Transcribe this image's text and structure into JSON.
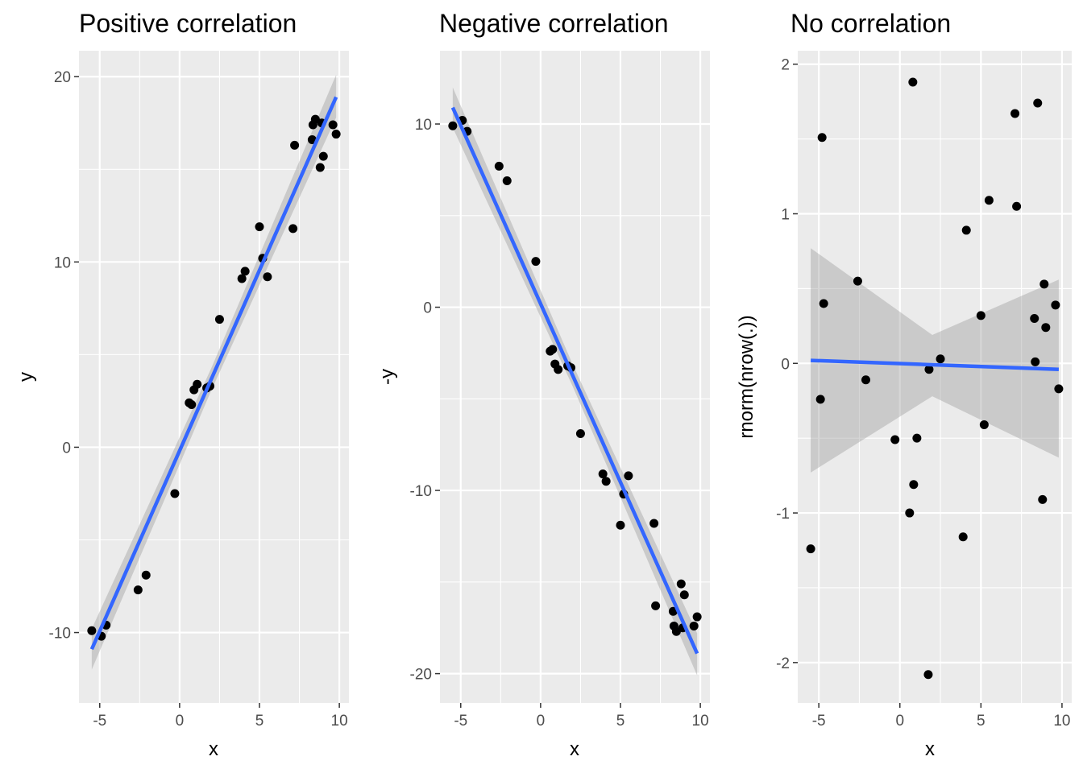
{
  "chart_data": [
    {
      "type": "scatter",
      "title": "Positive correlation",
      "xlabel": "x",
      "ylabel": "y",
      "xlim": [
        -6.3,
        10.6
      ],
      "ylim": [
        -13.8,
        21.4
      ],
      "xticks": [
        -5,
        0,
        5,
        10
      ],
      "yticks": [
        -10,
        0,
        10,
        20
      ],
      "xtick_labels": [
        "-5",
        "0",
        "5",
        "10"
      ],
      "ytick_labels": [
        "-10",
        "0",
        "10",
        "20"
      ],
      "grid": true,
      "points": {
        "x": [
          -5.5,
          -4.9,
          -4.6,
          -2.6,
          -2.1,
          -0.3,
          0.6,
          0.75,
          0.9,
          1.1,
          1.7,
          1.9,
          2.5,
          3.9,
          4.1,
          5.0,
          5.2,
          5.5,
          7.1,
          7.2,
          8.3,
          8.35,
          8.5,
          8.8,
          8.9,
          9.0,
          9.6,
          9.8
        ],
        "y": [
          -9.9,
          -10.2,
          -9.6,
          -7.7,
          -6.9,
          -2.5,
          2.4,
          2.3,
          3.1,
          3.4,
          3.2,
          3.3,
          6.9,
          9.1,
          9.5,
          11.9,
          10.2,
          9.2,
          11.8,
          16.3,
          16.6,
          17.4,
          17.7,
          15.1,
          17.5,
          15.7,
          17.4,
          16.9
        ]
      },
      "fit": {
        "x": [
          -5.5,
          9.8
        ],
        "y": [
          -10.9,
          18.9
        ]
      },
      "ci": {
        "x": [
          -5.5,
          2.0,
          9.8
        ],
        "upper": [
          -9.8,
          4.3,
          20.1
        ],
        "lower": [
          -12.0,
          3.1,
          17.8
        ]
      }
    },
    {
      "type": "scatter",
      "title": "Negative correlation",
      "xlabel": "x",
      "ylabel": "-y",
      "xlim": [
        -6.3,
        10.6
      ],
      "ylim": [
        -21.6,
        14.0
      ],
      "xticks": [
        -5,
        0,
        5,
        10
      ],
      "yticks": [
        -20,
        -10,
        0,
        10
      ],
      "xtick_labels": [
        "-5",
        "0",
        "5",
        "10"
      ],
      "ytick_labels": [
        "-20",
        "-10",
        "0",
        "10"
      ],
      "grid": true,
      "points": {
        "x": [
          -5.5,
          -4.9,
          -4.6,
          -2.6,
          -2.1,
          -0.3,
          0.6,
          0.75,
          0.9,
          1.1,
          1.7,
          1.9,
          2.5,
          3.9,
          4.1,
          5.0,
          5.2,
          5.5,
          7.1,
          7.2,
          8.3,
          8.35,
          8.5,
          8.8,
          8.9,
          9.0,
          9.6,
          9.8
        ],
        "y": [
          9.9,
          10.2,
          9.6,
          7.7,
          6.9,
          2.5,
          -2.4,
          -2.3,
          -3.1,
          -3.4,
          -3.2,
          -3.3,
          -6.9,
          -9.1,
          -9.5,
          -11.9,
          -10.2,
          -9.2,
          -11.8,
          -16.3,
          -16.6,
          -17.4,
          -17.7,
          -15.1,
          -17.5,
          -15.7,
          -17.4,
          -16.9
        ]
      },
      "fit": {
        "x": [
          -5.5,
          9.8
        ],
        "y": [
          10.9,
          -18.9
        ]
      },
      "ci": {
        "x": [
          -5.5,
          2.0,
          9.8
        ],
        "upper": [
          12.0,
          -3.1,
          -17.8
        ],
        "lower": [
          9.8,
          -4.3,
          -20.1
        ]
      }
    },
    {
      "type": "scatter",
      "title": "No correlation",
      "xlabel": "x",
      "ylabel": "rnorm(nrow(.))",
      "xlim": [
        -6.3,
        10.6
      ],
      "ylim": [
        -2.27,
        2.09
      ],
      "xticks": [
        -5,
        0,
        5,
        10
      ],
      "yticks": [
        -2,
        -1,
        0,
        1,
        2
      ],
      "xtick_labels": [
        "-5",
        "0",
        "5",
        "10"
      ],
      "ytick_labels": [
        "-2",
        "-1",
        "0",
        "1",
        "2"
      ],
      "grid": true,
      "points": {
        "x": [
          -5.5,
          -4.9,
          -4.8,
          -4.7,
          -2.6,
          -2.1,
          -0.3,
          0.6,
          0.8,
          0.85,
          1.05,
          1.8,
          1.75,
          2.5,
          3.9,
          4.1,
          5.0,
          5.2,
          5.5,
          7.1,
          7.2,
          8.3,
          8.35,
          8.5,
          8.8,
          8.9,
          9.0,
          9.6,
          9.8
        ],
        "y": [
          -1.24,
          -0.24,
          1.51,
          0.4,
          0.55,
          -0.11,
          -0.51,
          -1.0,
          1.88,
          -0.81,
          -0.5,
          -0.04,
          -2.08,
          0.03,
          -1.16,
          0.89,
          0.32,
          -0.41,
          1.09,
          1.67,
          1.05,
          0.3,
          0.01,
          1.74,
          -0.91,
          0.53,
          0.24,
          0.39,
          -0.17
        ]
      },
      "fit": {
        "x": [
          -5.5,
          9.8
        ],
        "y": [
          0.02,
          -0.04
        ]
      },
      "ci": {
        "x": [
          -5.5,
          2.0,
          9.8
        ],
        "upper": [
          0.77,
          0.19,
          0.56
        ],
        "lower": [
          -0.73,
          -0.22,
          -0.63
        ]
      }
    }
  ],
  "colors": {
    "panel_background": "#ebebeb",
    "grid": "#ffffff",
    "points": "#000000",
    "fit_line": "#3366ff",
    "ci_band": "#999999",
    "tick_labels": "#4d4d4d"
  }
}
